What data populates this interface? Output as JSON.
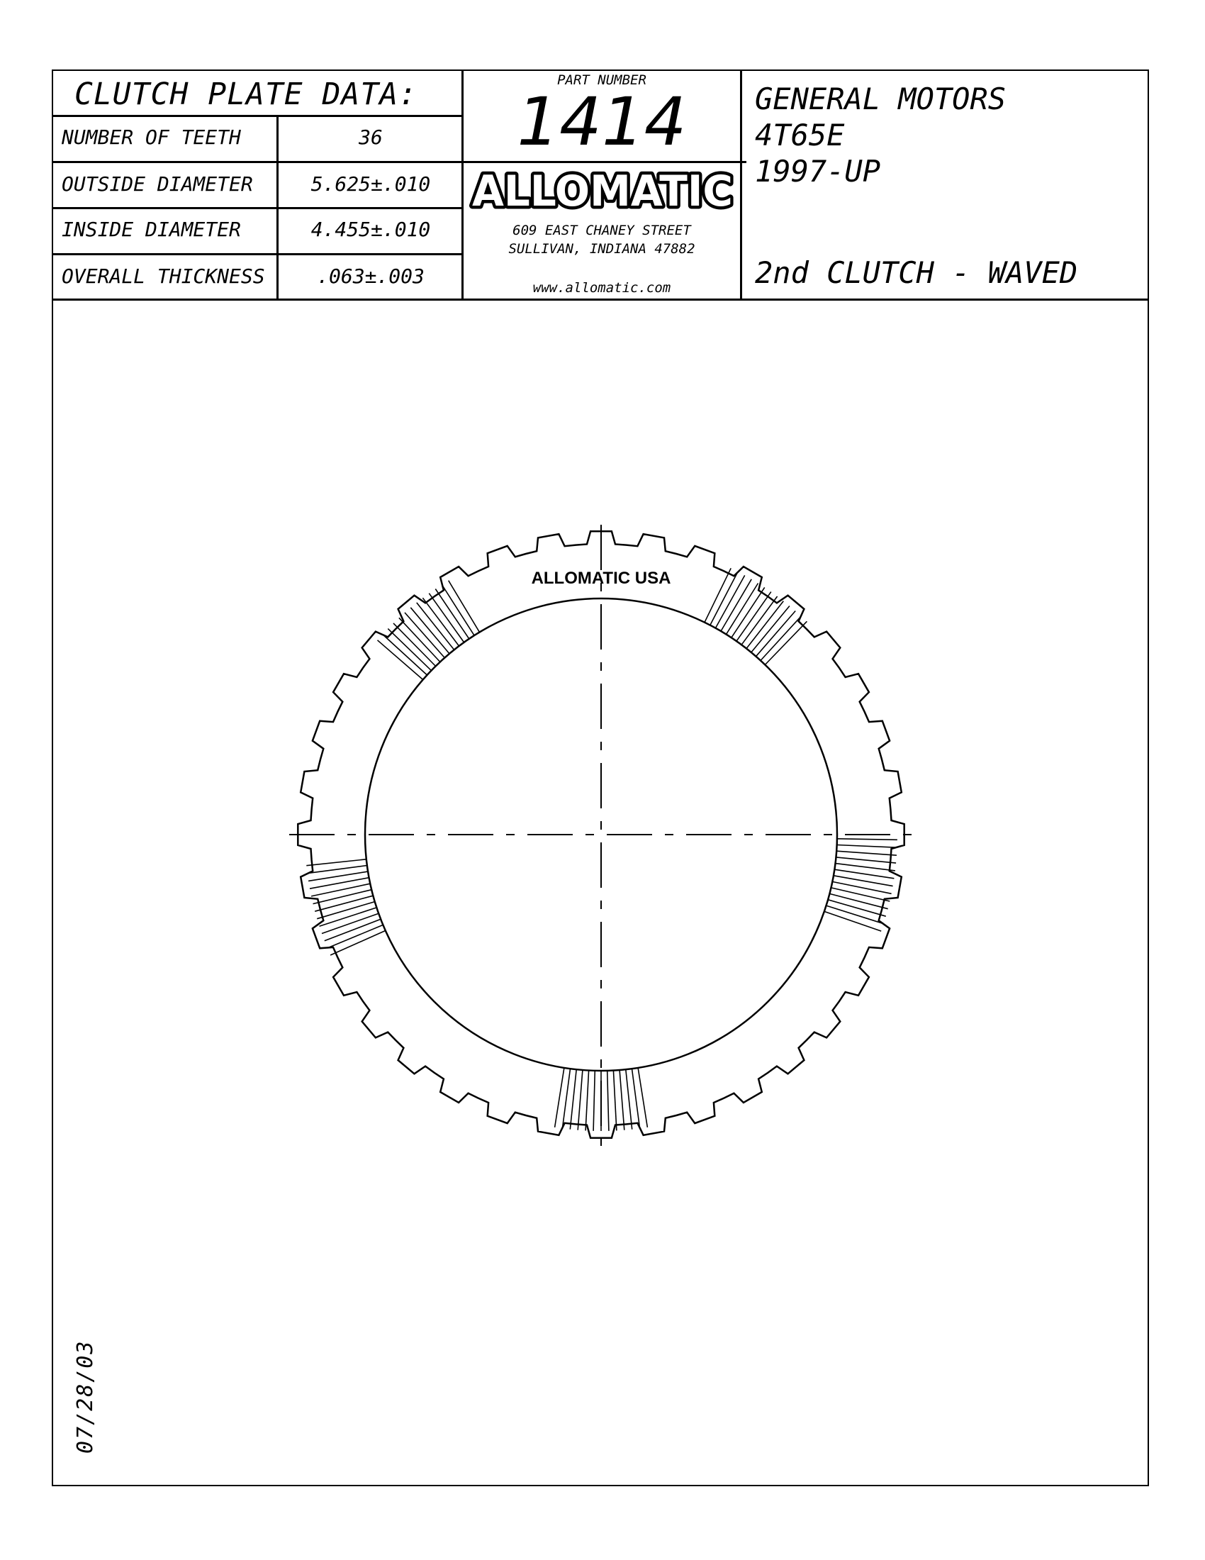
{
  "table": {
    "title": "CLUTCH PLATE DATA:",
    "rows": [
      {
        "label": "NUMBER OF TEETH",
        "value": "36"
      },
      {
        "label": "OUTSIDE DIAMETER",
        "value": "5.625±.010"
      },
      {
        "label": "INSIDE DIAMETER",
        "value": "4.455±.010"
      },
      {
        "label": "OVERALL THICKNESS",
        "value": ".063±.003"
      }
    ]
  },
  "part": {
    "label": "PART NUMBER",
    "number": "1414",
    "brand": "ALLOMATIC",
    "address1": "609 EAST CHANEY STREET",
    "address2": "SULLIVAN, INDIANA 47882",
    "website": "www.allomatic.com"
  },
  "application": {
    "make": "GENERAL MOTORS",
    "model": "4T65E",
    "years": "1997-UP",
    "description": "2nd CLUTCH - WAVED"
  },
  "drawing": {
    "stamp": "ALLOMATIC USA",
    "teeth": 36
  },
  "date": "07/28/03"
}
